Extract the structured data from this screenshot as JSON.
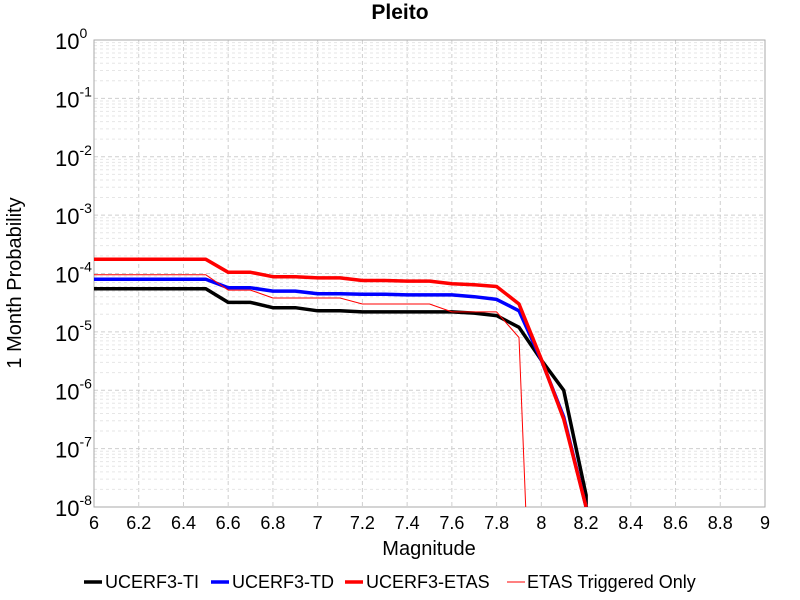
{
  "chart_data": {
    "type": "line",
    "title": "Pleito",
    "xlabel": "Magnitude",
    "ylabel": "1 Month Probability",
    "xlim": [
      6,
      9
    ],
    "ylim": [
      1e-08,
      1
    ],
    "y_scale": "log",
    "grid": true,
    "legend_position": "bottom",
    "x_ticks": [
      "6",
      "6.2",
      "6.4",
      "6.6",
      "6.8",
      "7",
      "7.2",
      "7.4",
      "7.6",
      "7.8",
      "8",
      "8.2",
      "8.4",
      "8.6",
      "8.8",
      "9"
    ],
    "y_ticks": [
      {
        "base": "10",
        "exp": "0"
      },
      {
        "base": "10",
        "exp": "-1"
      },
      {
        "base": "10",
        "exp": "-2"
      },
      {
        "base": "10",
        "exp": "-3"
      },
      {
        "base": "10",
        "exp": "-4"
      },
      {
        "base": "10",
        "exp": "-5"
      },
      {
        "base": "10",
        "exp": "-6"
      },
      {
        "base": "10",
        "exp": "-7"
      },
      {
        "base": "10",
        "exp": "-8"
      }
    ],
    "series": [
      {
        "name": "UCERF3-TI",
        "color": "#000000",
        "width": 3.5,
        "x": [
          6.0,
          6.5,
          6.6,
          6.7,
          6.8,
          6.9,
          7.0,
          7.1,
          7.2,
          7.3,
          7.4,
          7.5,
          7.6,
          7.7,
          7.8,
          7.9,
          8.0,
          8.1,
          8.2,
          8.2
        ],
        "y": [
          5.5e-05,
          5.5e-05,
          3.2e-05,
          3.2e-05,
          2.6e-05,
          2.6e-05,
          2.3e-05,
          2.3e-05,
          2.2e-05,
          2.2e-05,
          2.2e-05,
          2.2e-05,
          2.2e-05,
          2.1e-05,
          1.9e-05,
          1.2e-05,
          3.3e-06,
          1e-06,
          1.6e-08,
          8e-09
        ]
      },
      {
        "name": "UCERF3-TD",
        "color": "#0000ff",
        "width": 3.5,
        "x": [
          6.0,
          6.5,
          6.6,
          6.7,
          6.8,
          6.9,
          7.0,
          7.1,
          7.2,
          7.3,
          7.4,
          7.5,
          7.6,
          7.7,
          7.8,
          7.9,
          8.0,
          8.1,
          8.2
        ],
        "y": [
          8e-05,
          8e-05,
          5.7e-05,
          5.7e-05,
          5e-05,
          5e-05,
          4.5e-05,
          4.5e-05,
          4.4e-05,
          4.4e-05,
          4.3e-05,
          4.3e-05,
          4.3e-05,
          4e-05,
          3.6e-05,
          2.3e-05,
          3.3e-06,
          3.5e-07,
          1e-08
        ]
      },
      {
        "name": "UCERF3-ETAS",
        "color": "#ff0000",
        "width": 3.5,
        "x": [
          6.0,
          6.5,
          6.6,
          6.7,
          6.8,
          6.9,
          7.0,
          7.1,
          7.2,
          7.3,
          7.4,
          7.5,
          7.6,
          7.7,
          7.8,
          7.9,
          8.0,
          8.1,
          8.2
        ],
        "y": [
          0.000175,
          0.000175,
          0.000105,
          0.000105,
          8.8e-05,
          8.8e-05,
          8.4e-05,
          8.4e-05,
          7.6e-05,
          7.6e-05,
          7.4e-05,
          7.4e-05,
          6.7e-05,
          6.4e-05,
          6e-05,
          3e-05,
          3.4e-06,
          3.2e-07,
          1e-08
        ]
      },
      {
        "name": "ETAS Triggered Only",
        "color": "#ff0000",
        "width": 1,
        "x": [
          6.0,
          6.5,
          6.6,
          6.7,
          6.8,
          6.9,
          7.0,
          7.1,
          7.2,
          7.3,
          7.4,
          7.5,
          7.6,
          7.7,
          7.8,
          7.9,
          7.93
        ],
        "y": [
          9.5e-05,
          9.5e-05,
          5.2e-05,
          5.2e-05,
          3.8e-05,
          3.8e-05,
          3.8e-05,
          3.8e-05,
          3e-05,
          3e-05,
          3e-05,
          3e-05,
          2.2e-05,
          2.2e-05,
          2.2e-05,
          8e-06,
          1e-08
        ]
      }
    ]
  }
}
